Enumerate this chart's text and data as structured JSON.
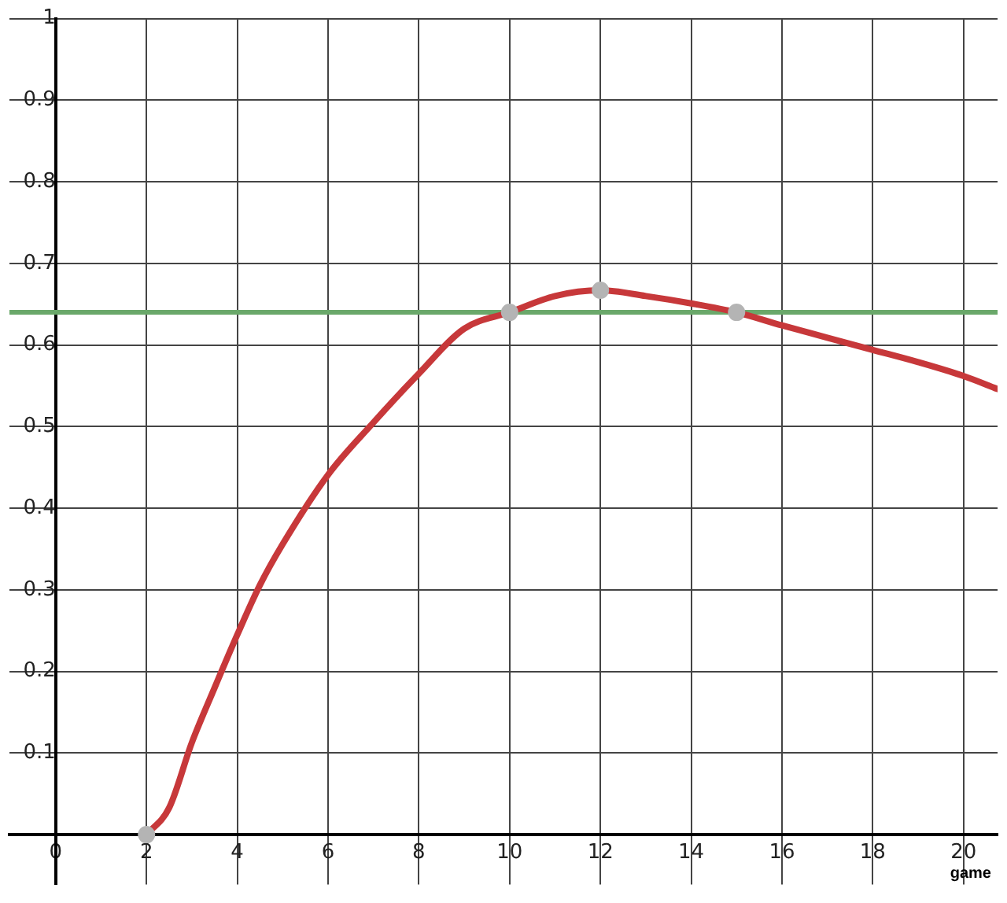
{
  "chart_data": {
    "type": "line",
    "xlabel": "game",
    "xlim": [
      -1.02,
      20.75
    ],
    "ylim": [
      -0.061,
      1.0
    ],
    "xticks": [
      0,
      2,
      4,
      6,
      8,
      10,
      12,
      14,
      16,
      18,
      20
    ],
    "yticks": [
      {
        "value": 0,
        "label": null
      },
      0.1,
      0.2,
      0.3,
      0.4,
      0.5,
      0.6,
      0.7,
      0.8,
      0.9,
      1
    ],
    "grid": true,
    "legend": false,
    "marker": "none",
    "line_style": "solid",
    "ref_lines": [
      {
        "axis": "y",
        "value": 0.64,
        "label": null,
        "color": "#6aa86a"
      }
    ],
    "series": [
      {
        "type": "line",
        "color": "#c7383a",
        "x": [
          2,
          2.5,
          3,
          3.5,
          4,
          4.5,
          5,
          6,
          7,
          8,
          9,
          10,
          11,
          12,
          13,
          14,
          15,
          16,
          17,
          18,
          19,
          20,
          20.75
        ],
        "values": [
          0,
          0.033,
          0.113,
          0.18,
          0.245,
          0.306,
          0.356,
          0.441,
          0.505,
          0.565,
          0.62,
          0.64,
          0.66,
          0.667,
          0.66,
          0.651,
          0.64,
          0.624,
          0.609,
          0.594,
          0.579,
          0.562,
          0.546
        ]
      },
      {
        "type": "scatter",
        "color": "#b4b4b4",
        "marker": "circle",
        "x": [
          2,
          10,
          12,
          15
        ],
        "values": [
          0,
          0.64,
          0.667,
          0.64
        ]
      }
    ]
  }
}
